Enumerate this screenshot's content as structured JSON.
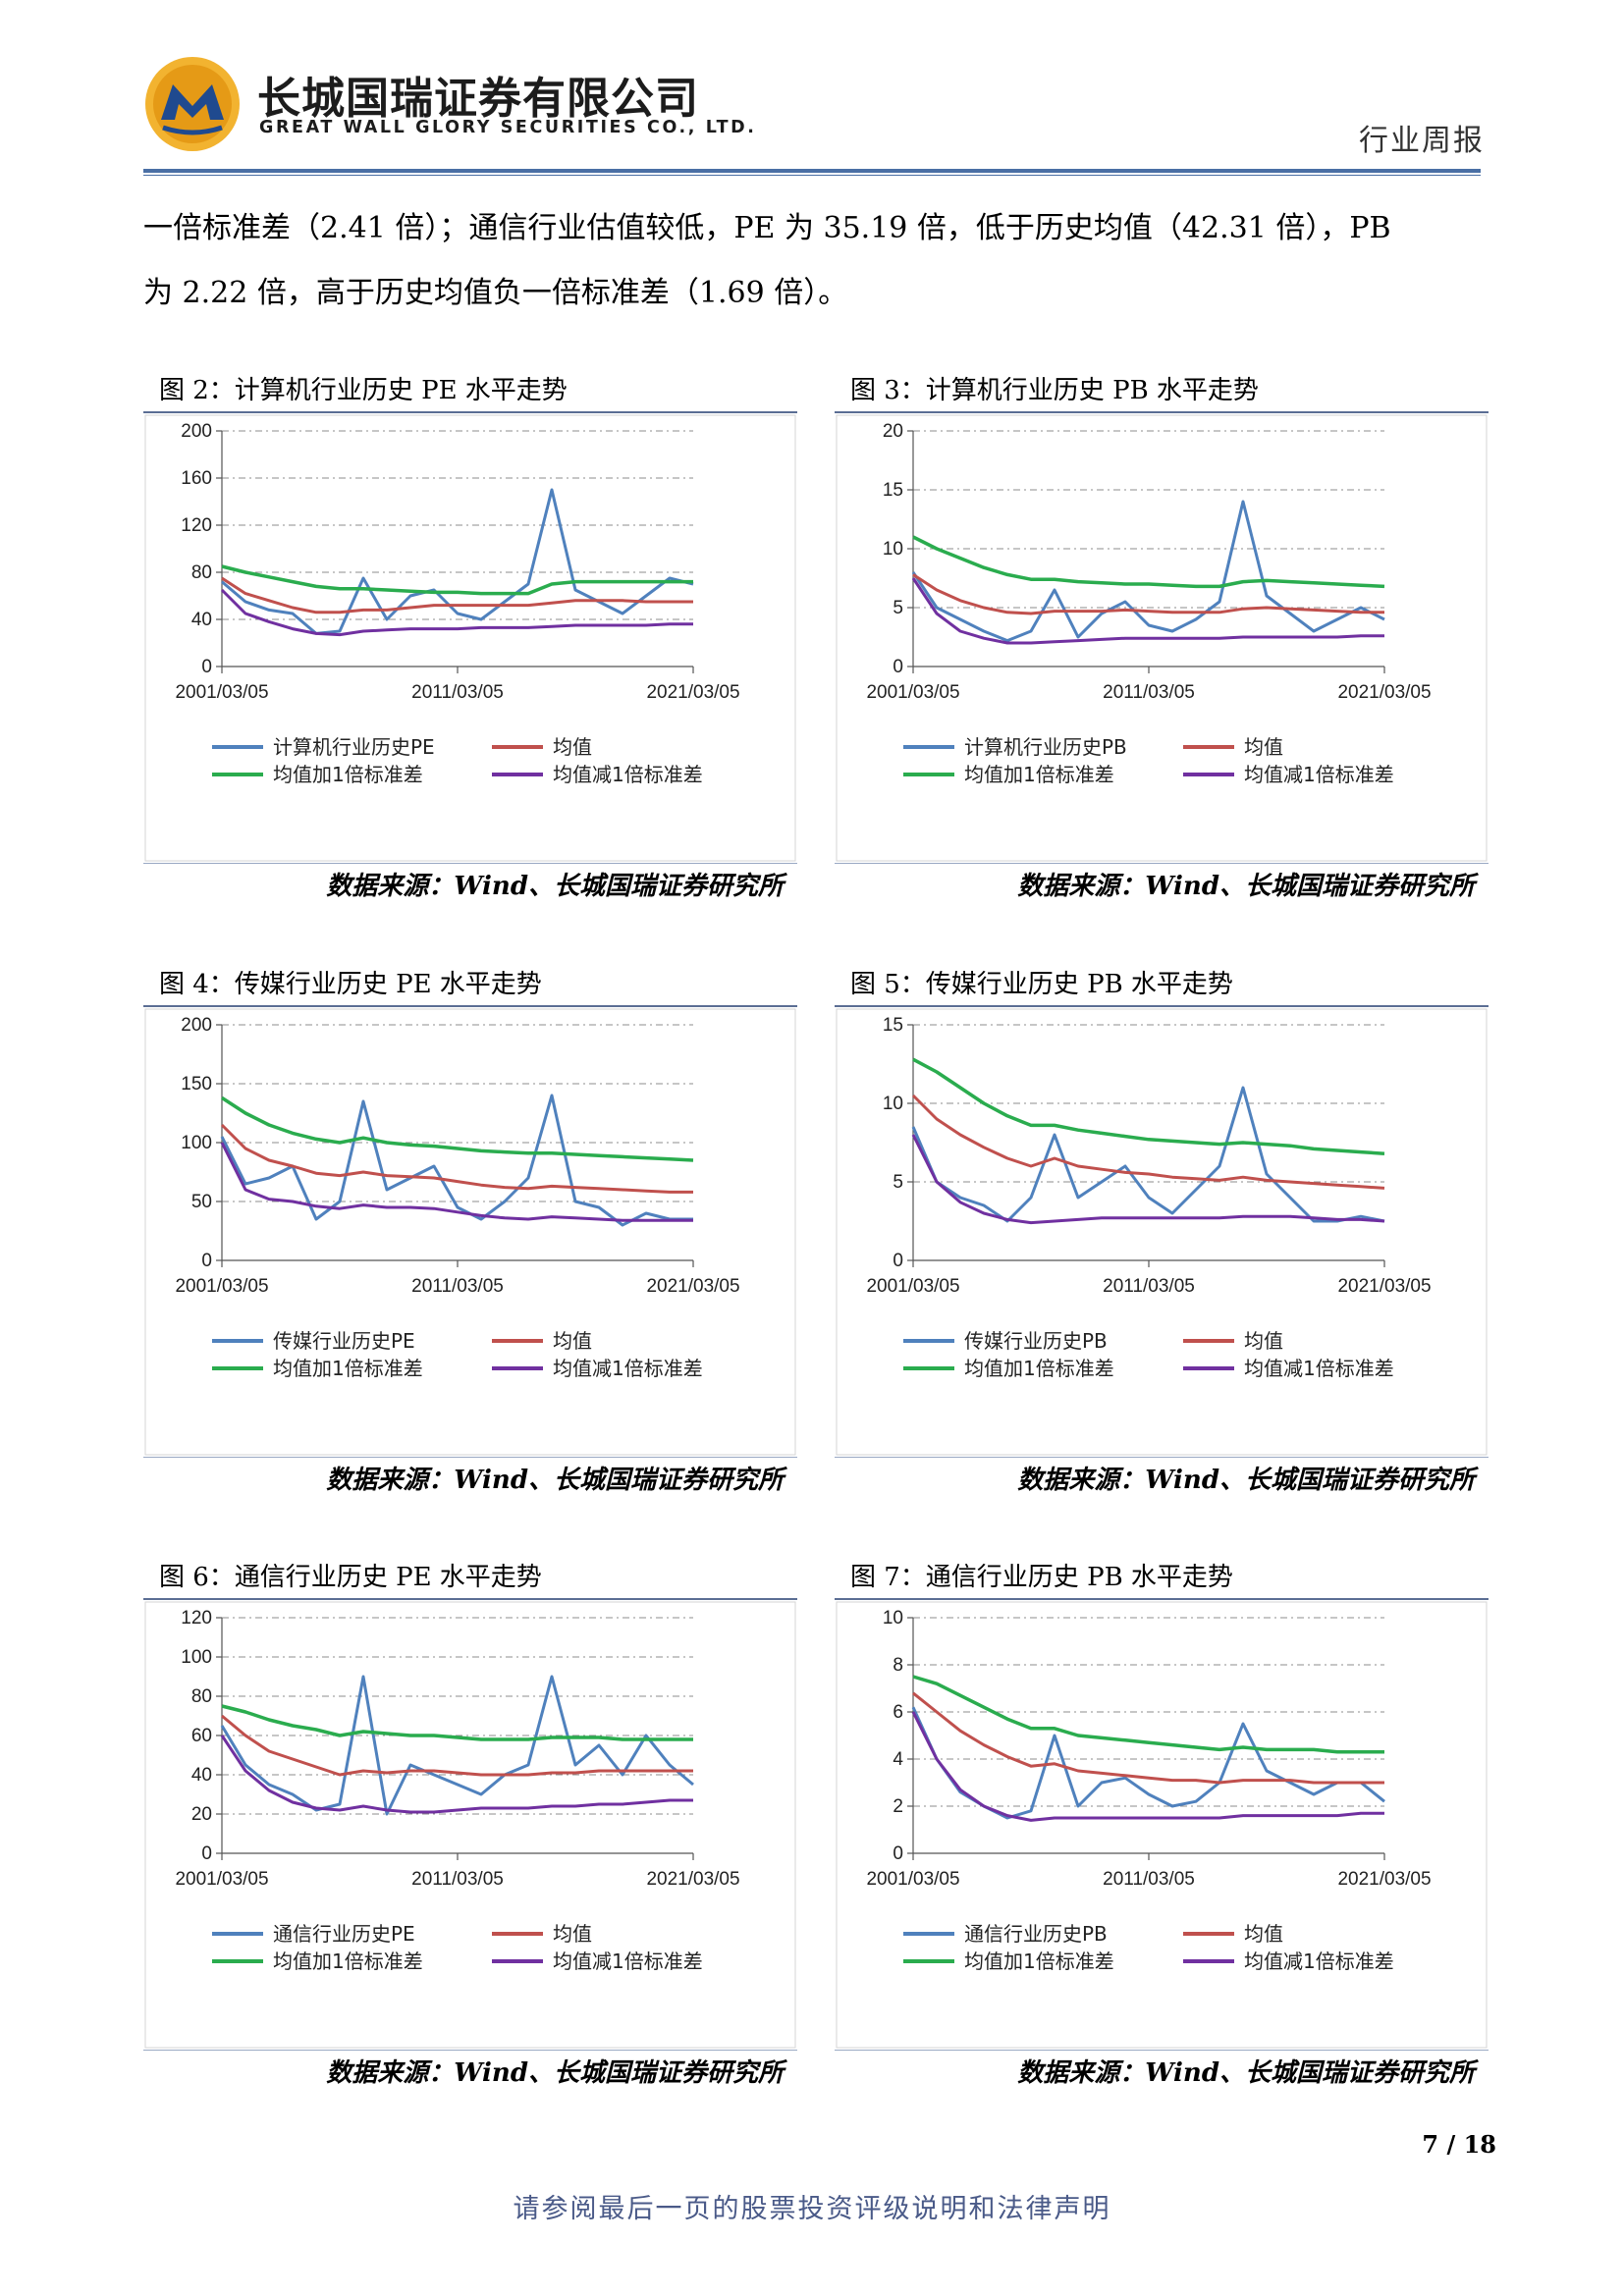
{
  "header": {
    "company_cn": "长城国瑞证券有限公司",
    "company_en": "GREAT WALL GLORY SECURITIES CO., LTD.",
    "doc_type": "行业周报"
  },
  "body": {
    "line1": "一倍标准差（2.41 倍）；通信行业估值较低，PE 为 35.19 倍，低于历史均值（42.31 倍），PB",
    "line2": "为 2.22 倍，高于历史均值负一倍标准差（1.69 倍）。"
  },
  "colors": {
    "series": "#4f81bd",
    "mean": "#c0504d",
    "plus": "#2aac4e",
    "minus": "#7030a0",
    "rule": "#4a6fa5"
  },
  "figures": [
    {
      "title": "图 2：计算机行业历史 PE 水平走势",
      "source": "数据来源：Wind、长城国瑞证券研究所"
    },
    {
      "title": "图 3：计算机行业历史 PB 水平走势",
      "source": "数据来源：Wind、长城国瑞证券研究所"
    },
    {
      "title": "图 4：传媒行业历史 PE 水平走势",
      "source": "数据来源：Wind、长城国瑞证券研究所"
    },
    {
      "title": "图 5：传媒行业历史 PB 水平走势",
      "source": "数据来源：Wind、长城国瑞证券研究所"
    },
    {
      "title": "图 6：通信行业历史 PE 水平走势",
      "source": "数据来源：Wind、长城国瑞证券研究所"
    },
    {
      "title": "图 7：通信行业历史 PB 水平走势",
      "source": "数据来源：Wind、长城国瑞证券研究所"
    }
  ],
  "chart_data": [
    {
      "type": "line",
      "ylim": [
        0,
        200
      ],
      "yticks": [
        0,
        40,
        80,
        120,
        160,
        200
      ],
      "xticks": [
        "2001/03/05",
        "2011/03/05",
        "2021/03/05"
      ],
      "x": [
        2001,
        2002,
        2003,
        2004,
        2005,
        2006,
        2007,
        2008,
        2009,
        2010,
        2011,
        2012,
        2013,
        2014,
        2015,
        2016,
        2017,
        2018,
        2019,
        2020,
        2021
      ],
      "series": [
        {
          "name": "计算机行业历史PE",
          "values": [
            72,
            55,
            48,
            45,
            28,
            30,
            75,
            40,
            60,
            65,
            45,
            40,
            55,
            70,
            150,
            65,
            55,
            45,
            60,
            75,
            70
          ]
        },
        {
          "name": "均值",
          "values": [
            75,
            62,
            56,
            50,
            46,
            46,
            48,
            48,
            50,
            52,
            52,
            52,
            52,
            52,
            54,
            56,
            56,
            56,
            55,
            55,
            55
          ]
        },
        {
          "name": "均值加1倍标准差",
          "values": [
            85,
            80,
            76,
            72,
            68,
            66,
            66,
            65,
            64,
            63,
            63,
            62,
            62,
            62,
            70,
            72,
            72,
            72,
            72,
            72,
            72
          ]
        },
        {
          "name": "均值减1倍标准差",
          "values": [
            65,
            45,
            38,
            32,
            28,
            27,
            30,
            31,
            32,
            32,
            32,
            33,
            33,
            33,
            34,
            35,
            35,
            35,
            35,
            36,
            36
          ]
        }
      ]
    },
    {
      "type": "line",
      "ylim": [
        0,
        20
      ],
      "yticks": [
        0,
        5,
        10,
        15,
        20
      ],
      "xticks": [
        "2001/03/05",
        "2011/03/05",
        "2021/03/05"
      ],
      "x": [
        2001,
        2002,
        2003,
        2004,
        2005,
        2006,
        2007,
        2008,
        2009,
        2010,
        2011,
        2012,
        2013,
        2014,
        2015,
        2016,
        2017,
        2018,
        2019,
        2020,
        2021
      ],
      "series": [
        {
          "name": "计算机行业历史PB",
          "values": [
            8,
            5,
            4,
            3,
            2.2,
            3,
            6.5,
            2.5,
            4.5,
            5.5,
            3.5,
            3,
            4,
            5.5,
            14,
            6,
            4.5,
            3,
            4,
            5,
            4
          ]
        },
        {
          "name": "均值",
          "values": [
            7.8,
            6.5,
            5.6,
            5,
            4.6,
            4.5,
            4.7,
            4.7,
            4.7,
            4.8,
            4.7,
            4.6,
            4.6,
            4.6,
            4.9,
            5,
            4.9,
            4.8,
            4.7,
            4.6,
            4.6
          ]
        },
        {
          "name": "均值加1倍标准差",
          "values": [
            11,
            10,
            9.2,
            8.4,
            7.8,
            7.4,
            7.4,
            7.2,
            7.1,
            7,
            7,
            6.9,
            6.8,
            6.8,
            7.2,
            7.3,
            7.2,
            7.1,
            7,
            6.9,
            6.8
          ]
        },
        {
          "name": "均值减1倍标准差",
          "values": [
            7.5,
            4.5,
            3,
            2.4,
            2,
            2,
            2.1,
            2.2,
            2.3,
            2.4,
            2.4,
            2.4,
            2.4,
            2.4,
            2.5,
            2.5,
            2.5,
            2.5,
            2.5,
            2.6,
            2.6
          ]
        }
      ]
    },
    {
      "type": "line",
      "ylim": [
        0,
        200
      ],
      "yticks": [
        0,
        50,
        100,
        150,
        200
      ],
      "xticks": [
        "2001/03/05",
        "2011/03/05",
        "2021/03/05"
      ],
      "x": [
        2001,
        2002,
        2003,
        2004,
        2005,
        2006,
        2007,
        2008,
        2009,
        2010,
        2011,
        2012,
        2013,
        2014,
        2015,
        2016,
        2017,
        2018,
        2019,
        2020,
        2021
      ],
      "series": [
        {
          "name": "传媒行业历史PE",
          "values": [
            105,
            65,
            70,
            80,
            35,
            50,
            135,
            60,
            70,
            80,
            45,
            35,
            50,
            70,
            140,
            50,
            45,
            30,
            40,
            35,
            35
          ]
        },
        {
          "name": "均值",
          "values": [
            115,
            95,
            85,
            80,
            74,
            72,
            75,
            72,
            71,
            70,
            67,
            64,
            62,
            61,
            63,
            62,
            61,
            60,
            59,
            58,
            58
          ]
        },
        {
          "name": "均值加1倍标准差",
          "values": [
            138,
            125,
            115,
            108,
            103,
            100,
            104,
            100,
            98,
            97,
            95,
            93,
            92,
            91,
            91,
            90,
            89,
            88,
            87,
            86,
            85
          ]
        },
        {
          "name": "均值减1倍标准差",
          "values": [
            100,
            60,
            52,
            50,
            46,
            44,
            47,
            45,
            45,
            44,
            41,
            38,
            36,
            35,
            37,
            36,
            35,
            34,
            34,
            34,
            34
          ]
        }
      ]
    },
    {
      "type": "line",
      "ylim": [
        0,
        15
      ],
      "yticks": [
        0,
        5,
        10,
        15
      ],
      "xticks": [
        "2001/03/05",
        "2011/03/05",
        "2021/03/05"
      ],
      "x": [
        2001,
        2002,
        2003,
        2004,
        2005,
        2006,
        2007,
        2008,
        2009,
        2010,
        2011,
        2012,
        2013,
        2014,
        2015,
        2016,
        2017,
        2018,
        2019,
        2020,
        2021
      ],
      "series": [
        {
          "name": "传媒行业历史PB",
          "values": [
            8.5,
            5,
            4,
            3.5,
            2.5,
            4,
            8,
            4,
            5,
            6,
            4,
            3,
            4.5,
            6,
            11,
            5.5,
            4,
            2.5,
            2.5,
            2.8,
            2.5
          ]
        },
        {
          "name": "均值",
          "values": [
            10.5,
            9,
            8,
            7.2,
            6.5,
            6,
            6.5,
            6,
            5.8,
            5.6,
            5.5,
            5.3,
            5.2,
            5.1,
            5.3,
            5.1,
            5,
            4.9,
            4.8,
            4.7,
            4.6
          ]
        },
        {
          "name": "均值加1倍标准差",
          "values": [
            12.8,
            12,
            11,
            10,
            9.2,
            8.6,
            8.6,
            8.3,
            8.1,
            7.9,
            7.7,
            7.6,
            7.5,
            7.4,
            7.5,
            7.4,
            7.3,
            7.1,
            7,
            6.9,
            6.8
          ]
        },
        {
          "name": "均值减1倍标准差",
          "values": [
            8,
            5,
            3.7,
            3,
            2.6,
            2.4,
            2.5,
            2.6,
            2.7,
            2.7,
            2.7,
            2.7,
            2.7,
            2.7,
            2.8,
            2.8,
            2.8,
            2.7,
            2.6,
            2.6,
            2.5
          ]
        }
      ]
    },
    {
      "type": "line",
      "ylim": [
        0,
        120
      ],
      "yticks": [
        0,
        20,
        40,
        60,
        80,
        100,
        120
      ],
      "xticks": [
        "2001/03/05",
        "2011/03/05",
        "2021/03/05"
      ],
      "x": [
        2001,
        2002,
        2003,
        2004,
        2005,
        2006,
        2007,
        2008,
        2009,
        2010,
        2011,
        2012,
        2013,
        2014,
        2015,
        2016,
        2017,
        2018,
        2019,
        2020,
        2021
      ],
      "series": [
        {
          "name": "通信行业历史PE",
          "values": [
            65,
            45,
            35,
            30,
            22,
            25,
            90,
            20,
            45,
            40,
            35,
            30,
            40,
            45,
            90,
            45,
            55,
            40,
            60,
            45,
            35
          ]
        },
        {
          "name": "均值",
          "values": [
            70,
            60,
            52,
            48,
            44,
            40,
            42,
            41,
            42,
            42,
            41,
            40,
            40,
            40,
            41,
            41,
            42,
            42,
            42,
            42,
            42
          ]
        },
        {
          "name": "均值加1倍标准差",
          "values": [
            75,
            72,
            68,
            65,
            63,
            60,
            62,
            61,
            60,
            60,
            59,
            58,
            58,
            58,
            59,
            59,
            59,
            58,
            58,
            58,
            58
          ]
        },
        {
          "name": "均值减1倍标准差",
          "values": [
            60,
            42,
            32,
            26,
            23,
            22,
            24,
            22,
            21,
            21,
            22,
            23,
            23,
            23,
            24,
            24,
            25,
            25,
            26,
            27,
            27
          ]
        }
      ]
    },
    {
      "type": "line",
      "ylim": [
        0,
        10
      ],
      "yticks": [
        0,
        2,
        4,
        6,
        8,
        10
      ],
      "xticks": [
        "2001/03/05",
        "2011/03/05",
        "2021/03/05"
      ],
      "x": [
        2001,
        2002,
        2003,
        2004,
        2005,
        2006,
        2007,
        2008,
        2009,
        2010,
        2011,
        2012,
        2013,
        2014,
        2015,
        2016,
        2017,
        2018,
        2019,
        2020,
        2021
      ],
      "series": [
        {
          "name": "通信行业历史PB",
          "values": [
            6.2,
            4,
            2.6,
            2,
            1.5,
            1.8,
            5,
            2,
            3,
            3.2,
            2.5,
            2,
            2.2,
            3,
            5.5,
            3.5,
            3,
            2.5,
            3,
            3,
            2.2
          ]
        },
        {
          "name": "均值",
          "values": [
            6.8,
            6,
            5.2,
            4.6,
            4.1,
            3.7,
            3.8,
            3.5,
            3.4,
            3.3,
            3.2,
            3.1,
            3.1,
            3,
            3.1,
            3.1,
            3.1,
            3,
            3,
            3,
            3
          ]
        },
        {
          "name": "均值加1倍标准差",
          "values": [
            7.5,
            7.2,
            6.7,
            6.2,
            5.7,
            5.3,
            5.3,
            5,
            4.9,
            4.8,
            4.7,
            4.6,
            4.5,
            4.4,
            4.5,
            4.4,
            4.4,
            4.4,
            4.3,
            4.3,
            4.3
          ]
        },
        {
          "name": "均值减1倍标准差",
          "values": [
            6,
            4,
            2.7,
            2,
            1.6,
            1.4,
            1.5,
            1.5,
            1.5,
            1.5,
            1.5,
            1.5,
            1.5,
            1.5,
            1.6,
            1.6,
            1.6,
            1.6,
            1.6,
            1.7,
            1.7
          ]
        }
      ]
    }
  ],
  "page_number": "7 / 18",
  "footer": "请参阅最后一页的股票投资评级说明和法律声明"
}
